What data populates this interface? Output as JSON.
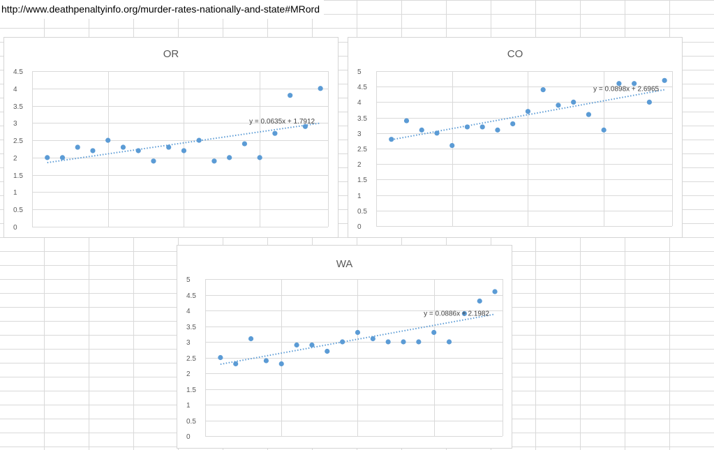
{
  "url_text": "http://www.deathpenaltyinfo.org/murder-rates-nationally-and-state#MRord",
  "chart_data": [
    {
      "type": "scatter",
      "title": "OR",
      "ylim": [
        0,
        4.5
      ],
      "yticks": [
        0,
        0.5,
        1,
        1.5,
        2,
        2.5,
        3,
        3.5,
        4,
        4.5
      ],
      "xlim": [
        0,
        19.5
      ],
      "x_gridlines": [
        5,
        10,
        15
      ],
      "grid": true,
      "x": [
        1,
        2,
        3,
        4,
        5,
        6,
        7,
        8,
        9,
        10,
        11,
        12,
        13,
        14,
        15,
        16,
        17,
        18,
        19
      ],
      "y": [
        2.0,
        2.0,
        2.3,
        2.2,
        2.5,
        2.3,
        2.2,
        1.9,
        2.3,
        2.2,
        2.5,
        1.9,
        2.0,
        2.4,
        2.0,
        2.7,
        3.8,
        2.9,
        4.0
      ],
      "trendline": {
        "slope": 0.0635,
        "intercept": 1.7912,
        "x_range": [
          1,
          19
        ],
        "label": "y = 0.0635x + 1.7912"
      }
    },
    {
      "type": "scatter",
      "title": "CO",
      "ylim": [
        0,
        5
      ],
      "yticks": [
        0,
        0.5,
        1,
        1.5,
        2,
        2.5,
        3,
        3.5,
        4,
        4.5,
        5
      ],
      "xlim": [
        0,
        19.5
      ],
      "x_gridlines": [
        5,
        10,
        15
      ],
      "grid": true,
      "x": [
        1,
        2,
        3,
        4,
        5,
        6,
        7,
        8,
        9,
        10,
        11,
        12,
        13,
        14,
        15,
        16,
        17,
        18,
        19
      ],
      "y": [
        2.8,
        3.4,
        3.1,
        3.0,
        2.6,
        3.2,
        3.2,
        3.1,
        3.3,
        3.7,
        4.4,
        3.9,
        4.0,
        3.6,
        3.1,
        4.6,
        4.6,
        4.0,
        4.7
      ],
      "trendline": {
        "slope": 0.0898,
        "intercept": 2.6965,
        "x_range": [
          1,
          19
        ],
        "label": "y = 0.0898x + 2.6965"
      }
    },
    {
      "type": "scatter",
      "title": "WA",
      "ylim": [
        0,
        5
      ],
      "yticks": [
        0,
        0.5,
        1,
        1.5,
        2,
        2.5,
        3,
        3.5,
        4,
        4.5,
        5
      ],
      "xlim": [
        0,
        19.5
      ],
      "x_gridlines": [
        5,
        10,
        15
      ],
      "grid": true,
      "x": [
        1,
        2,
        3,
        4,
        5,
        6,
        7,
        8,
        9,
        10,
        11,
        12,
        13,
        14,
        15,
        16,
        17,
        18,
        19
      ],
      "y": [
        2.5,
        2.3,
        3.1,
        2.4,
        2.3,
        2.9,
        2.9,
        2.7,
        3.0,
        3.3,
        3.1,
        3.0,
        3.0,
        3.0,
        3.3,
        3.0,
        3.9,
        4.3,
        4.6
      ],
      "trendline": {
        "slope": 0.0886,
        "intercept": 2.1982,
        "x_range": [
          1,
          19
        ],
        "label": "y = 0.0886x + 2.1982"
      }
    }
  ]
}
